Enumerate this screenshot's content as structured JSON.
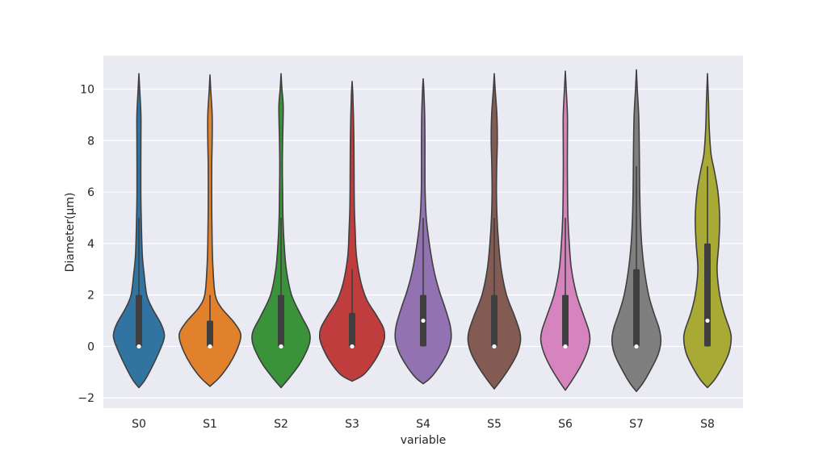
{
  "chart_data": {
    "type": "violin",
    "title": "",
    "xlabel": "variable",
    "ylabel": "Diameter(μm)",
    "ylim": [
      -2.4,
      11.3
    ],
    "yticks": [
      -2,
      0,
      2,
      4,
      6,
      8,
      10
    ],
    "ytick_labels": [
      "−2",
      "0",
      "2",
      "4",
      "6",
      "8",
      "10"
    ],
    "grid": true,
    "categories": [
      "S0",
      "S1",
      "S2",
      "S3",
      "S4",
      "S5",
      "S6",
      "S7",
      "S8"
    ],
    "colors": [
      "#3274a1",
      "#e1812c",
      "#3a923a",
      "#c03d3e",
      "#9372b2",
      "#845b53",
      "#d684bd",
      "#7f7f7f",
      "#a9aa35"
    ],
    "series": [
      {
        "min": -1.6,
        "max": 10.6,
        "q1": 0,
        "median": 0,
        "q3": 2,
        "whisker_low": 0,
        "whisker_high": 5,
        "density": [
          [
            -1.6,
            0
          ],
          [
            -1.3,
            7
          ],
          [
            -0.8,
            15
          ],
          [
            -0.3,
            22
          ],
          [
            0.2,
            28
          ],
          [
            0.5,
            29
          ],
          [
            0.9,
            25
          ],
          [
            1.5,
            15
          ],
          [
            2,
            9
          ],
          [
            2.8,
            6
          ],
          [
            3.5,
            4
          ],
          [
            4.5,
            3
          ],
          [
            6,
            2.2
          ],
          [
            8,
            2.3
          ],
          [
            9,
            2.3
          ],
          [
            10,
            0.9
          ],
          [
            10.6,
            0
          ]
        ]
      },
      {
        "min": -1.55,
        "max": 10.55,
        "q1": 0,
        "median": 0,
        "q3": 1,
        "whisker_low": 0,
        "whisker_high": 2,
        "density": [
          [
            -1.55,
            0
          ],
          [
            -1.2,
            11
          ],
          [
            -0.7,
            22
          ],
          [
            -0.2,
            30
          ],
          [
            0.3,
            35
          ],
          [
            0.6,
            34
          ],
          [
            1,
            26
          ],
          [
            1.5,
            13
          ],
          [
            2,
            6
          ],
          [
            3,
            3.5
          ],
          [
            4,
            2.5
          ],
          [
            5.5,
            2
          ],
          [
            7,
            2
          ],
          [
            8,
            2.5
          ],
          [
            9,
            2.5
          ],
          [
            10,
            0.8
          ],
          [
            10.55,
            0
          ]
        ]
      },
      {
        "min": -1.6,
        "max": 10.6,
        "q1": 0,
        "median": 0,
        "q3": 2,
        "whisker_low": 0,
        "whisker_high": 5,
        "density": [
          [
            -1.6,
            0
          ],
          [
            -1.2,
            10
          ],
          [
            -0.7,
            21
          ],
          [
            -0.2,
            29
          ],
          [
            0.2,
            33
          ],
          [
            0.6,
            32
          ],
          [
            1.2,
            23
          ],
          [
            2,
            12
          ],
          [
            3,
            6
          ],
          [
            4,
            3.5
          ],
          [
            5,
            2.2
          ],
          [
            6,
            1.8
          ],
          [
            7,
            1.5
          ],
          [
            8,
            1.8
          ],
          [
            9.3,
            2.5
          ],
          [
            10,
            1
          ],
          [
            10.6,
            0
          ]
        ]
      },
      {
        "min": -1.35,
        "max": 10.3,
        "q1": 0,
        "median": 0,
        "q3": 1.3,
        "whisker_low": 0,
        "whisker_high": 3,
        "density": [
          [
            -1.35,
            0
          ],
          [
            -1.1,
            13
          ],
          [
            -0.6,
            25
          ],
          [
            -0.1,
            33
          ],
          [
            0.3,
            37
          ],
          [
            0.7,
            36
          ],
          [
            1.2,
            28
          ],
          [
            1.8,
            17
          ],
          [
            2.5,
            10
          ],
          [
            3.5,
            5
          ],
          [
            4.5,
            3.5
          ],
          [
            5.5,
            2.5
          ],
          [
            7,
            2.2
          ],
          [
            8,
            2
          ],
          [
            9,
            1.5
          ],
          [
            9.8,
            0.8
          ],
          [
            10.3,
            0
          ]
        ]
      },
      {
        "min": -1.45,
        "max": 10.4,
        "q1": 0,
        "median": 1,
        "q3": 2,
        "whisker_low": 0,
        "whisker_high": 5,
        "density": [
          [
            -1.45,
            0
          ],
          [
            -1.2,
            9
          ],
          [
            -0.7,
            20
          ],
          [
            -0.2,
            28
          ],
          [
            0.3,
            32
          ],
          [
            0.8,
            31
          ],
          [
            1.5,
            25
          ],
          [
            2.2,
            18
          ],
          [
            3,
            12
          ],
          [
            4,
            7
          ],
          [
            5,
            3.5
          ],
          [
            6,
            2.2
          ],
          [
            7,
            2
          ],
          [
            8,
            2
          ],
          [
            9,
            1.7
          ],
          [
            10,
            0.7
          ],
          [
            10.4,
            0
          ]
        ]
      },
      {
        "min": -1.65,
        "max": 10.6,
        "q1": 0,
        "median": 0,
        "q3": 2,
        "whisker_low": 0,
        "whisker_high": 5,
        "density": [
          [
            -1.65,
            0
          ],
          [
            -1.3,
            8
          ],
          [
            -0.8,
            18
          ],
          [
            -0.3,
            26
          ],
          [
            0.2,
            30
          ],
          [
            0.6,
            29
          ],
          [
            1.2,
            23
          ],
          [
            2,
            14
          ],
          [
            3,
            8
          ],
          [
            4,
            5
          ],
          [
            5,
            3.2
          ],
          [
            6,
            2.5
          ],
          [
            7,
            2.8
          ],
          [
            8,
            3.5
          ],
          [
            9,
            3
          ],
          [
            10,
            1
          ],
          [
            10.6,
            0
          ]
        ]
      },
      {
        "min": -1.7,
        "max": 10.7,
        "q1": 0,
        "median": 0,
        "q3": 2,
        "whisker_low": 0,
        "whisker_high": 5,
        "density": [
          [
            -1.7,
            0
          ],
          [
            -1.3,
            8
          ],
          [
            -0.8,
            17
          ],
          [
            -0.3,
            24
          ],
          [
            0.2,
            28
          ],
          [
            0.6,
            27
          ],
          [
            1.2,
            21
          ],
          [
            2,
            13
          ],
          [
            3,
            7
          ],
          [
            4,
            4.5
          ],
          [
            5,
            3
          ],
          [
            6,
            2.5
          ],
          [
            7,
            2.3
          ],
          [
            8,
            2.4
          ],
          [
            9,
            2.4
          ],
          [
            10,
            1
          ],
          [
            10.7,
            0
          ]
        ]
      },
      {
        "min": -1.75,
        "max": 10.75,
        "q1": 0,
        "median": 0,
        "q3": 3,
        "whisker_low": 0,
        "whisker_high": 7,
        "density": [
          [
            -1.75,
            0
          ],
          [
            -1.4,
            8
          ],
          [
            -0.8,
            18
          ],
          [
            -0.3,
            25
          ],
          [
            0.2,
            28
          ],
          [
            0.7,
            26
          ],
          [
            1.3,
            20
          ],
          [
            2,
            14
          ],
          [
            3,
            9
          ],
          [
            4,
            6
          ],
          [
            5,
            4.5
          ],
          [
            6,
            3.8
          ],
          [
            7,
            3.5
          ],
          [
            8,
            3.2
          ],
          [
            9,
            2.6
          ],
          [
            10,
            1
          ],
          [
            10.75,
            0
          ]
        ]
      },
      {
        "min": -1.6,
        "max": 10.6,
        "q1": 0,
        "median": 1,
        "q3": 4,
        "whisker_low": 0,
        "whisker_high": 7,
        "density": [
          [
            -1.6,
            0
          ],
          [
            -1.3,
            8
          ],
          [
            -0.8,
            17
          ],
          [
            -0.3,
            24
          ],
          [
            0.2,
            27
          ],
          [
            0.6,
            26
          ],
          [
            1.3,
            19
          ],
          [
            2,
            14
          ],
          [
            3,
            11
          ],
          [
            4,
            13
          ],
          [
            5,
            14
          ],
          [
            6,
            12
          ],
          [
            6.8,
            8
          ],
          [
            7.5,
            4
          ],
          [
            8.5,
            2
          ],
          [
            9.5,
            1.2
          ],
          [
            10.6,
            0
          ]
        ]
      }
    ]
  }
}
